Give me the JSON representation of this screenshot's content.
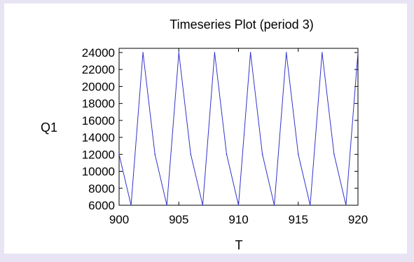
{
  "colors": {
    "line": "#3333cc",
    "axis": "#000000",
    "background": "#ffffff",
    "outer": "#e8e4f4"
  },
  "chart_data": {
    "type": "line",
    "title": "Timeseries Plot (period 3)",
    "xlabel": "T",
    "ylabel": "Q1",
    "xlim": [
      900,
      920
    ],
    "ylim": [
      6000,
      24000
    ],
    "xticks": [
      900,
      905,
      910,
      915,
      920
    ],
    "yticks": [
      6000,
      8000,
      10000,
      12000,
      14000,
      16000,
      18000,
      20000,
      22000,
      24000
    ],
    "grid": false,
    "series": [
      {
        "x": [
          900,
          901,
          902,
          903,
          904,
          905,
          906,
          907,
          908,
          909,
          910,
          911,
          912,
          913,
          914,
          915,
          916,
          917,
          918,
          919,
          920
        ],
        "values": [
          12000,
          6000,
          24000,
          12000,
          6000,
          24000,
          12000,
          6000,
          24000,
          12000,
          6000,
          24000,
          12000,
          6000,
          24000,
          12000,
          6000,
          24000,
          12000,
          6000,
          24000
        ]
      }
    ]
  }
}
